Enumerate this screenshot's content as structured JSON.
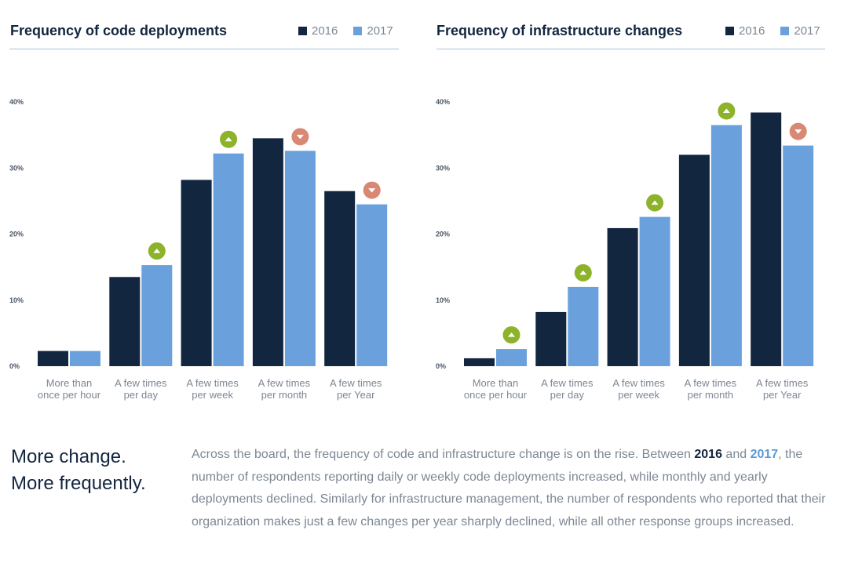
{
  "colors": {
    "y2016": "#12263f",
    "y2017": "#6aa1dc",
    "up": "#8db32a",
    "down": "#d98873"
  },
  "chart_data": [
    {
      "type": "bar",
      "title": "Frequency of code deployments",
      "categories": [
        [
          "More than",
          "once per hour"
        ],
        [
          "A few times",
          "per day"
        ],
        [
          "A few times",
          "per week"
        ],
        [
          "A few times",
          "per month"
        ],
        [
          "A few times",
          "per Year"
        ]
      ],
      "series": [
        {
          "name": "2016",
          "values": [
            2.3,
            13.5,
            28.2,
            34.5,
            26.5
          ]
        },
        {
          "name": "2017",
          "values": [
            2.3,
            15.3,
            32.2,
            32.6,
            24.5
          ]
        }
      ],
      "change": [
        "",
        "up",
        "up",
        "down",
        "down"
      ],
      "yticks": [
        "0%",
        "10%",
        "20%",
        "30%",
        "40%"
      ],
      "ylim": [
        0,
        40
      ],
      "legend": "top-right"
    },
    {
      "type": "bar",
      "title": "Frequency of infrastructure changes",
      "categories": [
        [
          "More than",
          "once per hour"
        ],
        [
          "A few times",
          "per day"
        ],
        [
          "A few times",
          "per week"
        ],
        [
          "A few times",
          "per month"
        ],
        [
          "A few times",
          "per Year"
        ]
      ],
      "series": [
        {
          "name": "2016",
          "values": [
            1.2,
            8.2,
            20.9,
            32.0,
            38.4
          ]
        },
        {
          "name": "2017",
          "values": [
            2.6,
            12.0,
            22.6,
            36.5,
            33.4
          ]
        }
      ],
      "change": [
        "up",
        "up",
        "up",
        "up",
        "down"
      ],
      "yticks": [
        "0%",
        "10%",
        "20%",
        "30%",
        "40%"
      ],
      "ylim": [
        0,
        40
      ],
      "legend": "top-right"
    }
  ],
  "headline": {
    "line1": "More change.",
    "line2": "More frequently."
  },
  "body": {
    "p1": "Across the board, the frequency of code and infrastructure change is on the rise. Between ",
    "y2016": "2016",
    "and": " and ",
    "y2017": "2017",
    "p2": ", the number of respondents reporting daily or weekly code deployments increased, while monthly and yearly deployments declined. Similarly for infrastructure management, the number of respondents who reported that their organization makes just a few changes per year sharply declined, while all other response groups increased."
  }
}
